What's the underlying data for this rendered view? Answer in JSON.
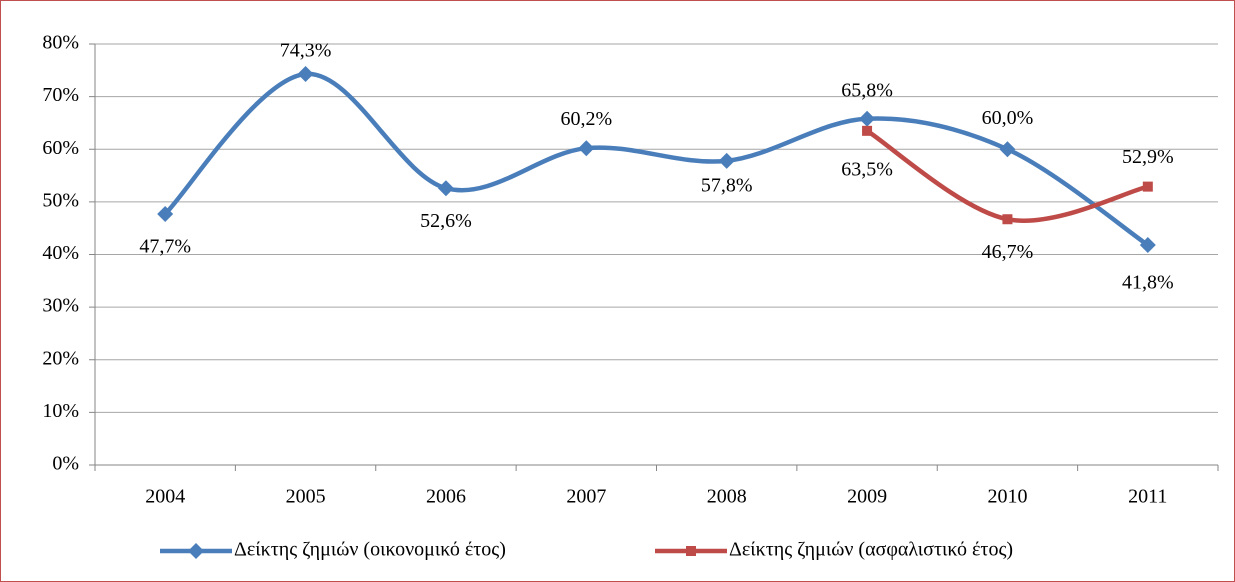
{
  "chart_data": {
    "type": "line",
    "categories": [
      "2004",
      "2005",
      "2006",
      "2007",
      "2008",
      "2009",
      "2010",
      "2011"
    ],
    "series": [
      {
        "name": "Δείκτης ζημιών (οικονομικό έτος)",
        "color": "#4a7ebb",
        "marker": "diamond",
        "values": [
          47.7,
          74.3,
          52.6,
          60.2,
          57.8,
          65.8,
          60.0,
          41.8
        ],
        "value_labels": [
          "47,7%",
          "74,3%",
          "52,6%",
          "60,2%",
          "57,8%",
          "65,8%",
          "60,0%",
          "41,8%"
        ]
      },
      {
        "name": "Δείκτης ζημιών (ασφαλιστικό έτος)",
        "color": "#be4b48",
        "marker": "square",
        "values": [
          null,
          null,
          null,
          null,
          null,
          63.5,
          46.7,
          52.9
        ],
        "value_labels": [
          null,
          null,
          null,
          null,
          null,
          "63,5%",
          "46,7%",
          "52,9%"
        ]
      }
    ],
    "ylim": [
      0,
      80
    ],
    "yticks": [
      {
        "value": 0,
        "label": "0%"
      },
      {
        "value": 10,
        "label": "10%"
      },
      {
        "value": 20,
        "label": "20%"
      },
      {
        "value": 30,
        "label": "30%"
      },
      {
        "value": 40,
        "label": "40%"
      },
      {
        "value": 50,
        "label": "50%"
      },
      {
        "value": 60,
        "label": "60%"
      },
      {
        "value": 70,
        "label": "70%"
      },
      {
        "value": 80,
        "label": "80%"
      }
    ],
    "grid": true,
    "smooth": true,
    "legend": "bottom"
  }
}
